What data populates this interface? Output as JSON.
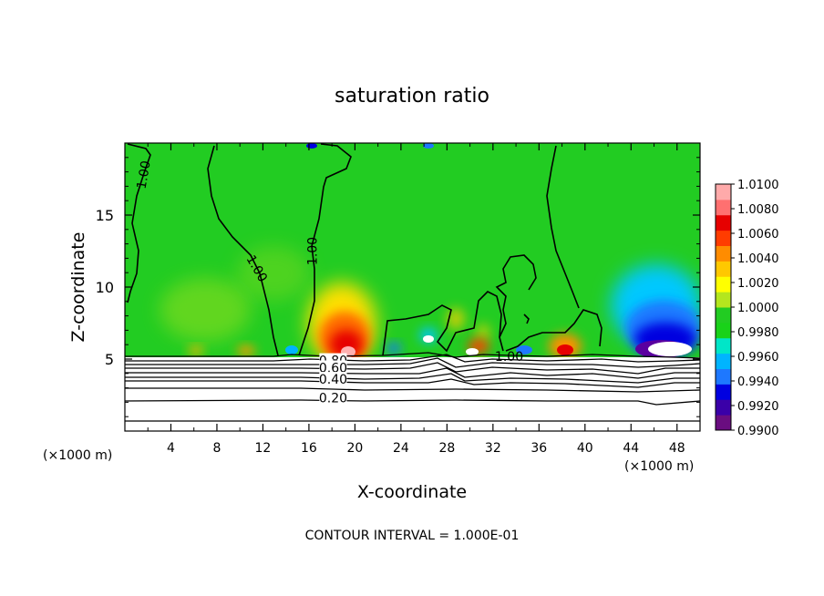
{
  "chart_data": {
    "type": "heatmap",
    "title": "saturation ratio",
    "xlabel": "X-coordinate",
    "ylabel": "Z-coordinate",
    "x_unit_left": "(×1000 m)",
    "x_unit_right": "(×1000 m)",
    "xlim": [
      0,
      50
    ],
    "ylim": [
      0,
      20
    ],
    "x_ticks": [
      4,
      8,
      12,
      16,
      20,
      24,
      28,
      32,
      36,
      40,
      44,
      48
    ],
    "x_tick_labels": [
      "4",
      "8",
      "12",
      "16",
      "20",
      "24",
      "28",
      "32",
      "36",
      "40",
      "44",
      "48"
    ],
    "y_ticks": [
      5,
      10,
      15
    ],
    "y_tick_labels": [
      "5",
      "10",
      "15"
    ],
    "footer": "CONTOUR INTERVAL = 1.000E-01",
    "colorbar": {
      "min": 0.99,
      "max": 1.01,
      "labels": [
        "1.0100",
        "1.0080",
        "1.0060",
        "1.0040",
        "1.0020",
        "1.0000",
        "0.9980",
        "0.9960",
        "0.9940",
        "0.9920",
        "0.9900"
      ],
      "colors": [
        "#6a0d80",
        "#3a00a8",
        "#0000e0",
        "#1e78ff",
        "#00b4ff",
        "#00e6c8",
        "#19d219",
        "#22cc22",
        "#b4e61e",
        "#ffff00",
        "#ffc800",
        "#ff8c00",
        "#ff3c00",
        "#e60000",
        "#ff7070",
        "#ffaaaa"
      ]
    },
    "contour_labels": [
      {
        "text": "1.00",
        "x": 1.6,
        "y": 17.8,
        "angle": -80
      },
      {
        "text": "1.00",
        "x": 11.5,
        "y": 11.3,
        "angle": 60
      },
      {
        "text": "1.00",
        "x": 16.3,
        "y": 12.5,
        "angle": -90
      },
      {
        "text": "1.00",
        "x": 33.4,
        "y": 5.2,
        "angle": 0
      },
      {
        "text": "0.80",
        "x": 18.1,
        "y": 4.9,
        "angle": 0
      },
      {
        "text": "0.60",
        "x": 18.1,
        "y": 4.4,
        "angle": 0
      },
      {
        "text": "0.40",
        "x": 18.1,
        "y": 3.6,
        "angle": 0
      },
      {
        "text": "0.20",
        "x": 18.1,
        "y": 2.3,
        "angle": 0
      }
    ]
  }
}
